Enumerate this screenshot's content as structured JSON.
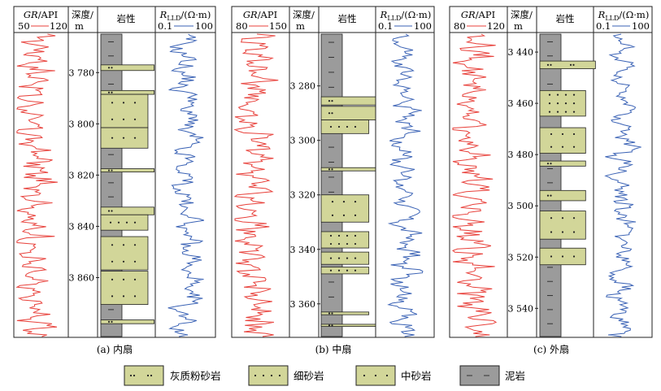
{
  "legend": {
    "silty": "灰质粉砂岩",
    "fine": "细砂岩",
    "medium": "中砂岩",
    "mud": "泥岩"
  },
  "panels": [
    {
      "caption": "(a) 内扇",
      "gr_title_a": "GR",
      "gr_title_b": "/API",
      "gr_min": "50",
      "gr_max": "120",
      "depth_title_1": "深度/",
      "depth_title_2": "m",
      "lith_title": "岩性",
      "r_title_a": "R",
      "r_title_sub": "LLD",
      "r_title_b": "/(Ω·m)",
      "r_min": "0.1",
      "r_max": "100",
      "depth_range": [
        3765,
        3883
      ],
      "ticks": [
        3780,
        3800,
        3820,
        3840,
        3860
      ],
      "tick_labels": [
        "3 780",
        "3 800",
        "3 820",
        "3 840",
        "3 860"
      ],
      "beds": [
        {
          "top": 3777.0,
          "bot": 3779.2,
          "type": "silty",
          "w": 0.95
        },
        {
          "top": 3787.0,
          "bot": 3788.5,
          "type": "silty",
          "w": 0.95
        },
        {
          "top": 3788.5,
          "bot": 3801.5,
          "type": "medium",
          "w": 0.84
        },
        {
          "top": 3801.5,
          "bot": 3809.5,
          "type": "medium",
          "w": 0.84
        },
        {
          "top": 3817.5,
          "bot": 3818.8,
          "type": "silty",
          "w": 0.95
        },
        {
          "top": 3832.5,
          "bot": 3835.5,
          "type": "silty",
          "w": 0.95
        },
        {
          "top": 3835.5,
          "bot": 3841.5,
          "type": "fine",
          "w": 0.84
        },
        {
          "top": 3844.0,
          "bot": 3857.0,
          "type": "medium",
          "w": 0.84
        },
        {
          "top": 3857.5,
          "bot": 3870.5,
          "type": "medium",
          "w": 0.84
        },
        {
          "top": 3876.5,
          "bot": 3878.0,
          "type": "silty",
          "w": 0.95
        }
      ]
    },
    {
      "caption": "(b) 中扇",
      "gr_title_a": "GR",
      "gr_title_b": "/API",
      "gr_min": "80",
      "gr_max": "150",
      "depth_title_1": "深度/",
      "depth_title_2": "m",
      "lith_title": "岩性",
      "r_title_a": "R",
      "r_title_sub": "LLD",
      "r_title_b": "/(Ω·m)",
      "r_min": "0.1",
      "r_max": "100",
      "depth_range": [
        3261,
        3372
      ],
      "ticks": [
        3280,
        3300,
        3320,
        3340,
        3360
      ],
      "tick_labels": [
        "3 280",
        "3 300",
        "3 320",
        "3 340",
        "3 360"
      ],
      "beds": [
        {
          "top": 3284.0,
          "bot": 3287.0,
          "type": "silty",
          "w": 0.97
        },
        {
          "top": 3287.5,
          "bot": 3292.5,
          "type": "silty",
          "w": 0.97
        },
        {
          "top": 3292.5,
          "bot": 3297.5,
          "type": "fine",
          "w": 0.85
        },
        {
          "top": 3310.0,
          "bot": 3311.2,
          "type": "silty",
          "w": 0.97
        },
        {
          "top": 3320.0,
          "bot": 3330.0,
          "type": "medium",
          "w": 0.85
        },
        {
          "top": 3333.5,
          "bot": 3339.5,
          "type": "fine",
          "w": 0.85
        },
        {
          "top": 3341.0,
          "bot": 3345.5,
          "type": "fine",
          "w": 0.85
        },
        {
          "top": 3346.5,
          "bot": 3349.0,
          "type": "fine",
          "w": 0.85
        },
        {
          "top": 3363.0,
          "bot": 3364.0,
          "type": "silty",
          "w": 0.85
        },
        {
          "top": 3367.5,
          "bot": 3368.3,
          "type": "silty",
          "w": 0.97
        }
      ]
    },
    {
      "caption": "(c) 外扇",
      "gr_title_a": "GR",
      "gr_title_b": "/API",
      "gr_min": "80",
      "gr_max": "120",
      "depth_title_1": "深度/",
      "depth_title_2": "m",
      "lith_title": "岩性",
      "r_title_a": "R",
      "r_title_sub": "LLD",
      "r_title_b": "/(Ω·m)",
      "r_min": "0.1",
      "r_max": "100",
      "depth_range": [
        3433,
        3551
      ],
      "ticks": [
        3440,
        3460,
        3480,
        3500,
        3520,
        3540
      ],
      "tick_labels": [
        "3 440",
        "3 460",
        "3 480",
        "3 500",
        "3 520",
        "3 540"
      ],
      "beds": [
        {
          "top": 3443.5,
          "bot": 3446.5,
          "type": "silty",
          "w": 1.02
        },
        {
          "top": 3455.0,
          "bot": 3465.0,
          "type": "fine",
          "w": 0.84
        },
        {
          "top": 3469.5,
          "bot": 3479.5,
          "type": "medium",
          "w": 0.84
        },
        {
          "top": 3482.5,
          "bot": 3484.5,
          "type": "silty",
          "w": 0.84
        },
        {
          "top": 3494.0,
          "bot": 3498.0,
          "type": "silty",
          "w": 0.84
        },
        {
          "top": 3502.0,
          "bot": 3513.0,
          "type": "medium",
          "w": 0.84
        },
        {
          "top": 3516.5,
          "bot": 3523.0,
          "type": "medium",
          "w": 0.84
        }
      ]
    }
  ],
  "colors": {
    "gr": "#e8413b",
    "rlld": "#3a62b5",
    "sand": "#d2d699",
    "mud": "#9b9b9b",
    "border": "#222222"
  }
}
